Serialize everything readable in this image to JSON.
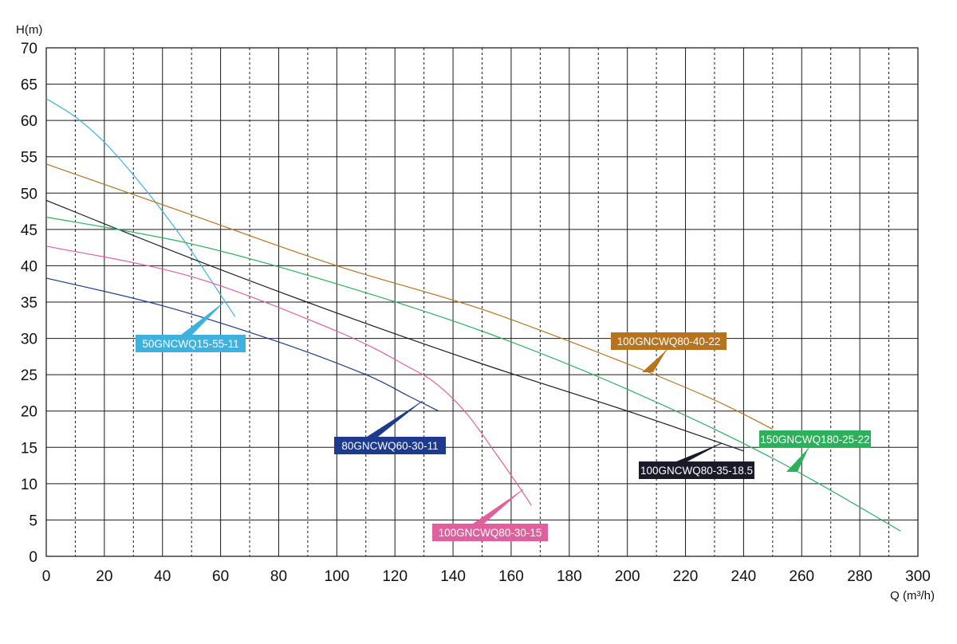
{
  "chart_data": {
    "type": "line",
    "title": "",
    "xlabel": "Q (m³/h)",
    "ylabel": "H(m)",
    "xlim": [
      0,
      300
    ],
    "ylim": [
      0,
      70
    ],
    "x_ticks": [
      0,
      20,
      40,
      60,
      80,
      100,
      120,
      140,
      160,
      180,
      200,
      220,
      240,
      260,
      280,
      300
    ],
    "y_ticks": [
      0,
      5,
      10,
      15,
      20,
      25,
      30,
      35,
      40,
      45,
      50,
      55,
      60,
      65,
      70
    ],
    "grid": true,
    "series": [
      {
        "name": "50GNCWQ15-55-11",
        "color": "#3fb1dd",
        "x": [
          0,
          10,
          20,
          30,
          40,
          50,
          60,
          65
        ],
        "y": [
          63,
          60.5,
          57,
          52.5,
          47.5,
          42,
          36,
          33
        ]
      },
      {
        "name": "100GNCWQ80-40-22",
        "color": "#b8731f",
        "x": [
          0,
          50,
          100,
          150,
          200,
          230,
          250
        ],
        "y": [
          54,
          47,
          40,
          34,
          26.5,
          21.5,
          17.5
        ]
      },
      {
        "name": "100GNCWQ80-35-18.5",
        "color": "#1a1a2a",
        "x": [
          0,
          50,
          100,
          150,
          200,
          240
        ],
        "y": [
          49,
          41,
          33.5,
          26.5,
          20,
          14.5
        ]
      },
      {
        "name": "150GNCWQ180-25-22",
        "color": "#2db05c",
        "x": [
          0,
          50,
          100,
          150,
          200,
          250,
          294
        ],
        "y": [
          46.7,
          43,
          37.5,
          31,
          23,
          13.5,
          3.5
        ]
      },
      {
        "name": "100GNCWQ80-30-15",
        "color": "#e0609e",
        "x": [
          0,
          50,
          100,
          125,
          135,
          145,
          155,
          162,
          167
        ],
        "y": [
          42.7,
          38.5,
          31,
          26,
          23.5,
          19.5,
          14,
          10,
          7
        ]
      },
      {
        "name": "80GNCWQ60-30-11",
        "color": "#1d3a8c",
        "x": [
          0,
          40,
          80,
          110,
          125,
          135
        ],
        "y": [
          38.3,
          34.5,
          29.5,
          25,
          22,
          20
        ]
      }
    ],
    "annotations": [
      {
        "text": "50GNCWQ15-55-11",
        "series": 0,
        "fill": "#3fb1dd"
      },
      {
        "text": "100GNCWQ80-40-22",
        "series": 1,
        "fill": "#b8731f"
      },
      {
        "text": "100GNCWQ80-35-18.5",
        "series": 2,
        "fill": "#1a1a2a"
      },
      {
        "text": "150GNCWQ180-25-22",
        "series": 3,
        "fill": "#2db05c"
      },
      {
        "text": "100GNCWQ80-30-15",
        "series": 4,
        "fill": "#e0609e"
      },
      {
        "text": "80GNCWQ60-30-11",
        "series": 5,
        "fill": "#1d3a8c"
      }
    ]
  }
}
